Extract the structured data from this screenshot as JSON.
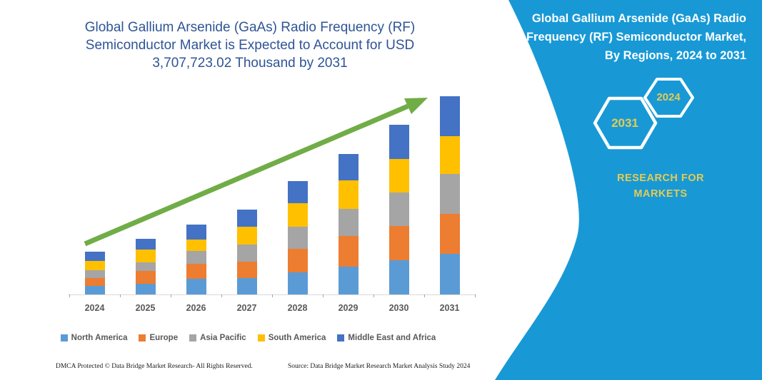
{
  "titles": {
    "chart_title_lines": [
      "Global Gallium Arsenide (GaAs) Radio Frequency (RF)",
      "Semiconductor Market is Expected to Account for USD",
      "3,707,723.02 Thousand by 2031"
    ],
    "panel_title_lines": [
      "Global Gallium Arsenide (GaAs) Radio",
      "Frequency (RF) Semiconductor Market,",
      "By Regions, 2024 to 2031"
    ]
  },
  "panel": {
    "background_color": "#1899D6",
    "hexagon_badge_back": "2031",
    "hexagon_badge_front": "2024",
    "brand_lines": [
      "RESEARCH FOR",
      "MARKETS"
    ],
    "accent_text_color": "#E4CB55"
  },
  "chart_data": {
    "type": "bar",
    "stacked": true,
    "title": "Global Gallium Arsenide (GaAs) Radio Frequency (RF) Semiconductor Market is Expected to Account for USD 3,707,723.02 Thousand by 2031",
    "categories": [
      "2024",
      "2025",
      "2026",
      "2027",
      "2028",
      "2029",
      "2030",
      "2031"
    ],
    "series": [
      {
        "name": "North America",
        "color": "#5B9BD5",
        "values": [
          12,
          15,
          22,
          23,
          31,
          39,
          48,
          57
        ]
      },
      {
        "name": "Europe",
        "color": "#ED7D31",
        "values": [
          11,
          18,
          21,
          23,
          33,
          43,
          48,
          56
        ]
      },
      {
        "name": "Asia Pacific",
        "color": "#A5A5A5",
        "values": [
          11,
          12,
          18,
          24,
          31,
          38,
          47,
          56
        ]
      },
      {
        "name": "South America",
        "color": "#FFC000",
        "values": [
          13,
          18,
          16,
          25,
          33,
          40,
          47,
          53
        ]
      },
      {
        "name": "Middle East and Africa",
        "color": "#4472C4",
        "values": [
          13,
          15,
          21,
          24,
          31,
          37,
          48,
          56
        ]
      }
    ],
    "stack_totals": [
      60,
      78,
      98,
      119,
      159,
      197,
      238,
      278
    ],
    "value_note": "No y-axis shown; values are estimated relative heights (px). 2031 total stack corresponds to USD 3,707,723.02 Thousand.",
    "xlabel": "",
    "ylabel": "",
    "grid": "off",
    "legend_position": "bottom",
    "annotations": [
      "green upward trend arrow from 2024 to 2031"
    ],
    "trend_arrow_color": "#70AD47"
  },
  "footer": {
    "left": "DMCA Protected © Data Bridge Market Research-  All Rights Reserved.",
    "right": "Source: Data Bridge Market Research  Market Analysis Study 2024"
  }
}
